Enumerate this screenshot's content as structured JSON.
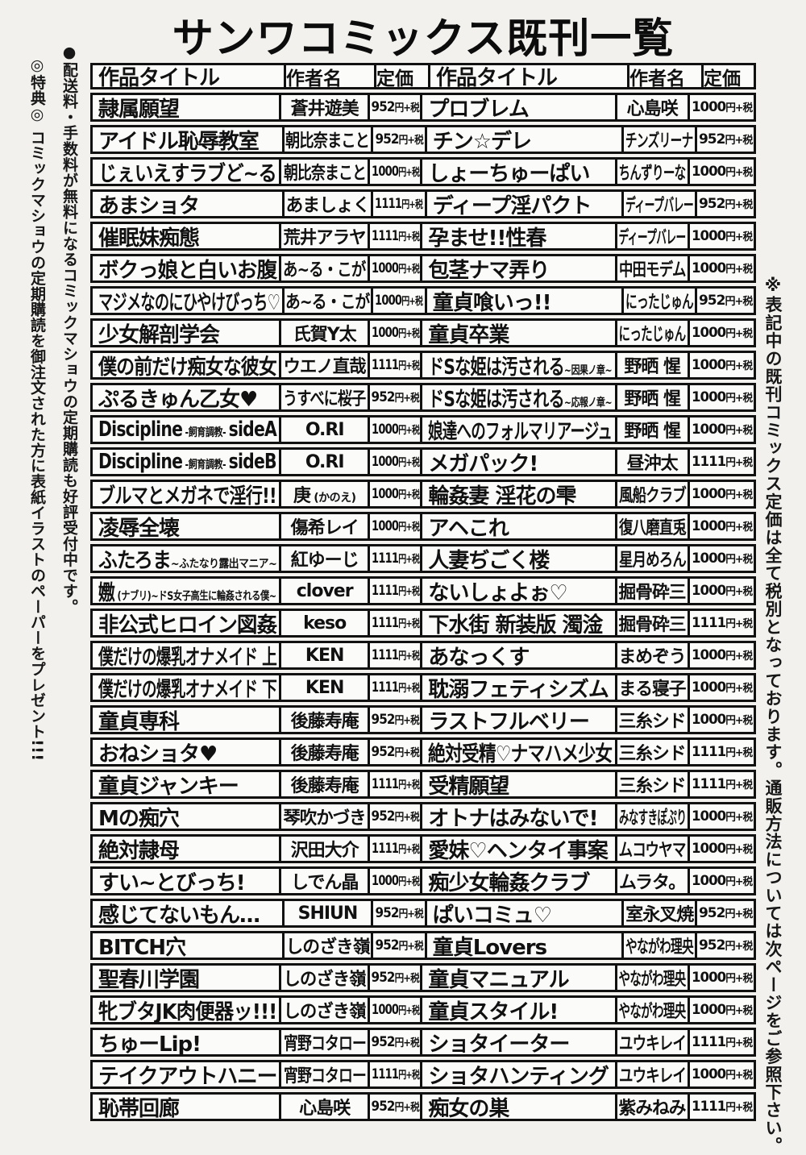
{
  "colors": {
    "ink": "#111111",
    "paper": "#f2f1ee",
    "cell": "#fbfbf9"
  },
  "page": {
    "title": "サンワコミックス既刊一覧",
    "notes": {
      "promo": "●配送料・手数料が無料になるコミックマショウの定期購読も好評受付中です。",
      "bonus": "◎特典◎ コミックマショウの定期購読を御注文された方に表紙イラストのペーパーをプレゼント!!!",
      "tax": "※表記中の既刊コミックス定価は全て税別となっております。通販方法については次ページをご参照下さい。"
    }
  },
  "table": {
    "headers": {
      "title": "作品タイトル",
      "author": "作者名",
      "price": "定価"
    },
    "rows": [
      {
        "left": {
          "title": "隷属願望",
          "author": "蒼井遊美",
          "price": "952円+税"
        },
        "right": {
          "title": "プロブレム",
          "author": "心島咲",
          "price": "1000円+税"
        }
      },
      {
        "left": {
          "title": "アイドル恥辱教室",
          "author": "朝比奈まこと",
          "price": "952円+税"
        },
        "right": {
          "title": "チン☆デレ",
          "author": "チンズリーナ",
          "price": "952円+税"
        }
      },
      {
        "left": {
          "title": "じぇいえすラブど~る",
          "author": "朝比奈まこと",
          "price": "1000円+税"
        },
        "right": {
          "title": "しょーちゅーぱい",
          "author": "ちんずりーな",
          "price": "1000円+税"
        }
      },
      {
        "left": {
          "title": "あまショタ",
          "author": "あましょく",
          "price": "1111円+税"
        },
        "right": {
          "title": "ディープ淫パクト",
          "author": "ディープバレー",
          "price": "952円+税"
        }
      },
      {
        "left": {
          "title": "催眠妹痴態",
          "author": "荒井アラヤ",
          "price": "1111円+税"
        },
        "right": {
          "title": "孕ませ!!性春",
          "author": "ディープバレー",
          "price": "1000円+税"
        }
      },
      {
        "left": {
          "title": "ボクっ娘と白いお腹",
          "author": "あ~る・こが",
          "price": "1000円+税"
        },
        "right": {
          "title": "包茎ナマ弄り",
          "author": "中田モデム",
          "price": "1000円+税"
        }
      },
      {
        "left": {
          "title": "マジメなのにひやけびっち♡",
          "author": "あ~る・こが",
          "price": "1000円+税"
        },
        "right": {
          "title": "童貞喰いっ!!",
          "author": "にったじゅん",
          "price": "952円+税"
        }
      },
      {
        "left": {
          "title": "少女解剖学会",
          "author": "氏賀Y太",
          "price": "1000円+税"
        },
        "right": {
          "title": "童貞卒業",
          "author": "にったじゅん",
          "price": "1000円+税"
        }
      },
      {
        "left": {
          "title": "僕の前だけ痴女な彼女",
          "author": "ウエノ直哉",
          "price": "1111円+税"
        },
        "right": {
          "title": [
            {
              "text": "ドSな姫は汚される",
              "small": false
            },
            {
              "text": "~因果ノ章~",
              "small": true
            }
          ],
          "author": "野晒 惺",
          "price": "1000円+税"
        }
      },
      {
        "left": {
          "title": "ぷるきゅん乙女♥",
          "author": "うすべに桜子",
          "price": "952円+税"
        },
        "right": {
          "title": [
            {
              "text": "ドSな姫は汚される",
              "small": false
            },
            {
              "text": "~応報ノ章~",
              "small": true
            }
          ],
          "author": "野晒 惺",
          "price": "1000円+税"
        }
      },
      {
        "left": {
          "title": [
            {
              "text": "Discipline",
              "small": false
            },
            {
              "text": " -飼育調教- ",
              "small": true
            },
            {
              "text": "sideA",
              "small": false
            }
          ],
          "author": "O.RI",
          "price": "1000円+税"
        },
        "right": {
          "title": "娘達へのフォルマリアージュ",
          "author": "野晒 惺",
          "price": "1000円+税"
        }
      },
      {
        "left": {
          "title": [
            {
              "text": "Discipline",
              "small": false
            },
            {
              "text": " -飼育調教- ",
              "small": true
            },
            {
              "text": "sideB",
              "small": false
            }
          ],
          "author": "O.RI",
          "price": "1000円+税"
        },
        "right": {
          "title": "メガパック!",
          "author": "昼沖太",
          "price": "1111円+税"
        }
      },
      {
        "left": {
          "title": "ブルマとメガネで淫行!!",
          "author": [
            {
              "text": "庚",
              "small": false
            },
            {
              "text": " (かのえ)",
              "small": true
            }
          ],
          "price": "1000円+税"
        },
        "right": {
          "title": "輪姦妻 淫花の雫",
          "author": "風船クラブ",
          "price": "1000円+税"
        }
      },
      {
        "left": {
          "title": "凌辱全壊",
          "author": "傷希レイ",
          "price": "1000円+税"
        },
        "right": {
          "title": "アヘこれ",
          "author": "復八磨直兎",
          "price": "1000円+税"
        }
      },
      {
        "left": {
          "title": [
            {
              "text": "ふたろま",
              "small": false
            },
            {
              "text": "~ふたなり露出マニア~",
              "small": true
            }
          ],
          "author": "紅ゆーじ",
          "price": "1111円+税"
        },
        "right": {
          "title": "人妻ぢごく楼",
          "author": "星月めろん",
          "price": "1000円+税"
        }
      },
      {
        "left": {
          "title": [
            {
              "text": "嫐",
              "small": false
            },
            {
              "text": " (ナブリ)~ドS女子高生に輪姦される僕~",
              "small": true
            }
          ],
          "author": "clover",
          "price": "1111円+税"
        },
        "right": {
          "title": "ないしょよぉ♡",
          "author": "掘骨砕三",
          "price": "1000円+税"
        }
      },
      {
        "left": {
          "title": "非公式ヒロイン図姦",
          "author": "keso",
          "price": "1111円+税"
        },
        "right": {
          "title": "下水街 新装版 濁淦",
          "author": "掘骨砕三",
          "price": "1111円+税"
        }
      },
      {
        "left": {
          "title": "僕だけの爆乳オナメイド 上",
          "author": "KEN",
          "price": "1111円+税"
        },
        "right": {
          "title": "あなっくす",
          "author": "まめぞう",
          "price": "1000円+税"
        }
      },
      {
        "left": {
          "title": "僕だけの爆乳オナメイド 下",
          "author": "KEN",
          "price": "1111円+税"
        },
        "right": {
          "title": "耽溺フェティシズム",
          "author": "まる寝子",
          "price": "1000円+税"
        }
      },
      {
        "left": {
          "title": "童貞専科",
          "author": "後藤寿庵",
          "price": "952円+税"
        },
        "right": {
          "title": "ラストフルベリー",
          "author": "三糸シド",
          "price": "1000円+税"
        }
      },
      {
        "left": {
          "title": "おねショタ♥",
          "author": "後藤寿庵",
          "price": "952円+税"
        },
        "right": {
          "title": "絶対受精♡ナマハメ少女",
          "author": "三糸シド",
          "price": "1111円+税"
        }
      },
      {
        "left": {
          "title": "童貞ジャンキー",
          "author": "後藤寿庵",
          "price": "1111円+税"
        },
        "right": {
          "title": "受精願望",
          "author": "三糸シド",
          "price": "1111円+税"
        }
      },
      {
        "left": {
          "title": "Mの痴穴",
          "author": "琴吹かづき",
          "price": "952円+税"
        },
        "right": {
          "title": "オトナはみないで!",
          "author": "みなすきぽぷり",
          "price": "1000円+税"
        }
      },
      {
        "left": {
          "title": "絶対隷母",
          "author": "沢田大介",
          "price": "1111円+税"
        },
        "right": {
          "title": "愛妹♡ヘンタイ事案",
          "author": "ムコウヤマ",
          "price": "1000円+税"
        }
      },
      {
        "left": {
          "title": "すい~とびっち!",
          "author": "しでん晶",
          "price": "1000円+税"
        },
        "right": {
          "title": "痴少女輪姦クラブ",
          "author": "ムラタ。",
          "price": "1000円+税"
        }
      },
      {
        "left": {
          "title": "感じてないもん…",
          "author": "SHIUN",
          "price": "952円+税"
        },
        "right": {
          "title": "ぱいコミュ♡",
          "author": "室永叉焼",
          "price": "952円+税"
        }
      },
      {
        "left": {
          "title": "BITCH穴",
          "author": "しのざき嶺",
          "price": "952円+税"
        },
        "right": {
          "title": "童貞Lovers",
          "author": "やながわ理央",
          "price": "952円+税"
        }
      },
      {
        "left": {
          "title": "聖春川学園",
          "author": "しのざき嶺",
          "price": "952円+税"
        },
        "right": {
          "title": "童貞マニュアル",
          "author": "やながわ理央",
          "price": "1000円+税"
        }
      },
      {
        "left": {
          "title": "牝ブタJK肉便器ッ!!!",
          "author": "しのざき嶺",
          "price": "1000円+税"
        },
        "right": {
          "title": "童貞スタイル!",
          "author": "やながわ理央",
          "price": "1000円+税"
        }
      },
      {
        "left": {
          "title": "ちゅーLip!",
          "author": "宵野コタロー",
          "price": "952円+税"
        },
        "right": {
          "title": "ショタイーター",
          "author": "ユウキレイ",
          "price": "1111円+税"
        }
      },
      {
        "left": {
          "title": "テイクアウトハニー",
          "author": "宵野コタロー",
          "price": "1111円+税"
        },
        "right": {
          "title": "ショタハンティング",
          "author": "ユウキレイ",
          "price": "1000円+税"
        }
      },
      {
        "left": {
          "title": "恥帯回廊",
          "author": "心島咲",
          "price": "952円+税"
        },
        "right": {
          "title": "痴女の巣",
          "author": "紫みねみ",
          "price": "1111円+税"
        }
      }
    ]
  }
}
